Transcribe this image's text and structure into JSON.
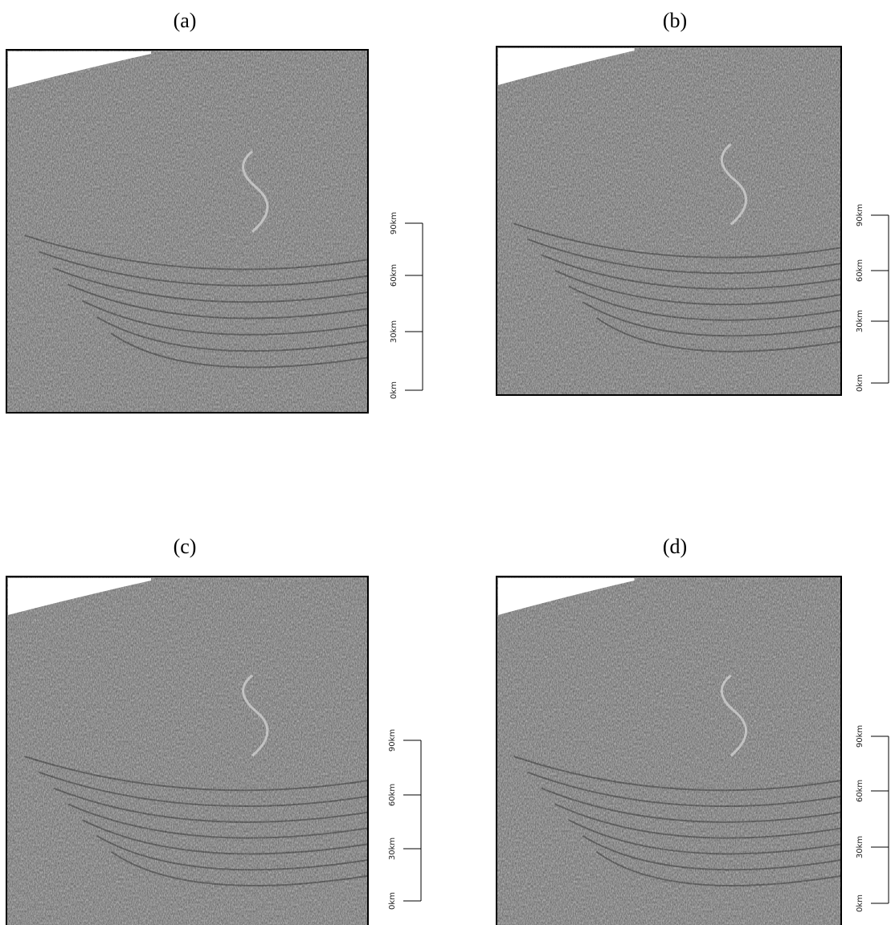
{
  "panels": [
    {
      "label": "(a)",
      "scale": [
        "0km",
        "30km",
        "60km",
        "90km"
      ]
    },
    {
      "label": "(b)",
      "scale": [
        "0km",
        "30km",
        "60km",
        "90km"
      ]
    },
    {
      "label": "(c)",
      "scale": [
        "0km",
        "30km",
        "60km",
        "90km"
      ]
    },
    {
      "label": "(d)",
      "scale": [
        "0km",
        "30km",
        "60km",
        "90km"
      ]
    }
  ]
}
